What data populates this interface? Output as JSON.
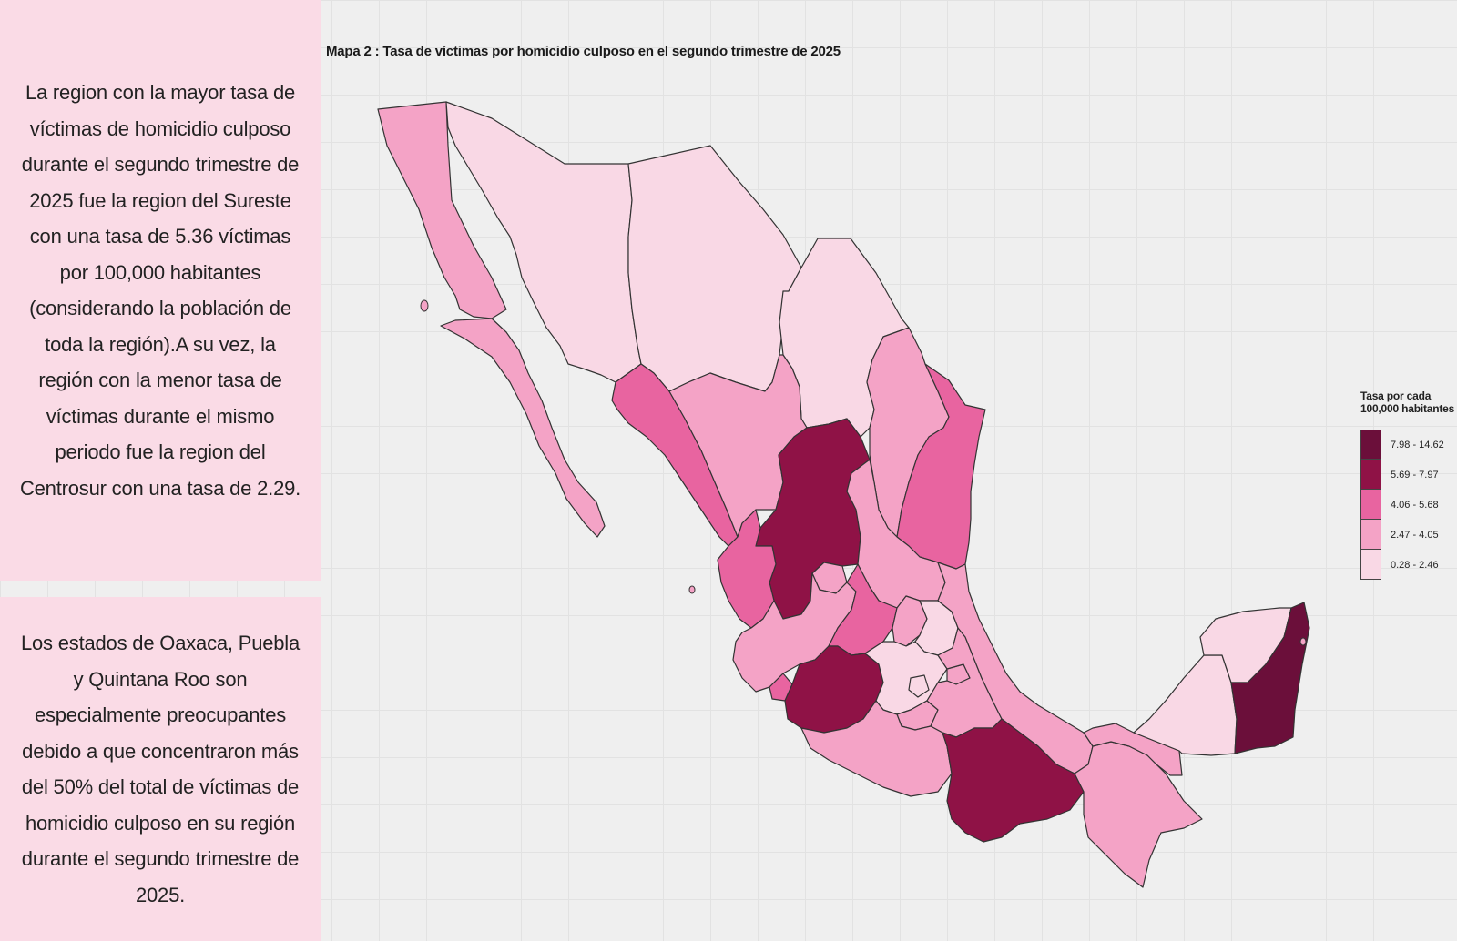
{
  "left_panel": {
    "top_text": "La region con la mayor tasa de víctimas de homicidio culposo durante el segundo trimestre de 2025 fue la region del Sureste con una tasa de 5.36 víctimas por 100,000 habitantes (considerando la población de toda la región).A su vez, la región con la menor tasa de víctimas durante el mismo periodo fue la region del Centrosur con una tasa de 2.29.",
    "bottom_text": "Los estados de Oaxaca, Puebla y Quintana Roo son especialmente preocupantes debido a que concentraron más del 50% del total de víctimas de homicidio culposo en su región durante el segundo trimestre de 2025."
  },
  "map": {
    "title": "Mapa 2 : Tasa de víctimas por homicidio culposo en el segundo trimestre de 2025",
    "legend": {
      "title": "Tasa por cada 100,000 habitantes",
      "classes": [
        {
          "label": "7.98 - 14.62",
          "color": "#6b0f3a"
        },
        {
          "label": "5.69 - 7.97",
          "color": "#8f1246"
        },
        {
          "label": "4.06 - 5.68",
          "color": "#e864a0"
        },
        {
          "label": "2.47 - 4.05",
          "color": "#f4a3c6"
        },
        {
          "label": "0.28 - 2.46",
          "color": "#f9d8e5"
        }
      ]
    },
    "states": [
      {
        "name": "Baja California",
        "class": 3
      },
      {
        "name": "Baja California Sur",
        "class": 3
      },
      {
        "name": "Sonora",
        "class": 4
      },
      {
        "name": "Chihuahua",
        "class": 4
      },
      {
        "name": "Coahuila",
        "class": 4
      },
      {
        "name": "Nuevo León",
        "class": 3
      },
      {
        "name": "Tamaulipas",
        "class": 2
      },
      {
        "name": "Sinaloa",
        "class": 2
      },
      {
        "name": "Durango",
        "class": 3
      },
      {
        "name": "Zacatecas",
        "class": 1
      },
      {
        "name": "San Luis Potosí",
        "class": 3
      },
      {
        "name": "Nayarit",
        "class": 2
      },
      {
        "name": "Aguascalientes",
        "class": 3
      },
      {
        "name": "Jalisco",
        "class": 3
      },
      {
        "name": "Guanajuato",
        "class": 2
      },
      {
        "name": "Querétaro",
        "class": 3
      },
      {
        "name": "Hidalgo",
        "class": 4
      },
      {
        "name": "Colima",
        "class": 2
      },
      {
        "name": "Michoacán",
        "class": 1
      },
      {
        "name": "Estado de México",
        "class": 4
      },
      {
        "name": "Ciudad de México",
        "class": 4
      },
      {
        "name": "Morelos",
        "class": 3
      },
      {
        "name": "Tlaxcala",
        "class": 3
      },
      {
        "name": "Puebla",
        "class": 3
      },
      {
        "name": "Veracruz",
        "class": 3
      },
      {
        "name": "Guerrero",
        "class": 3
      },
      {
        "name": "Oaxaca",
        "class": 1
      },
      {
        "name": "Chiapas",
        "class": 3
      },
      {
        "name": "Tabasco",
        "class": 3
      },
      {
        "name": "Campeche",
        "class": 4
      },
      {
        "name": "Yucatán",
        "class": 4
      },
      {
        "name": "Quintana Roo",
        "class": 0
      }
    ]
  }
}
